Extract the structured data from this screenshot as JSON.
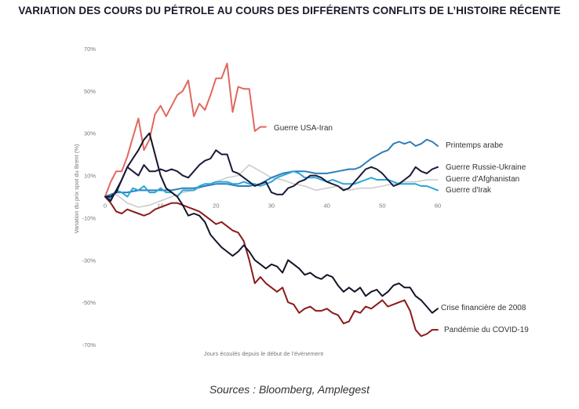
{
  "title": "VARIATION DES COURS DU PÉTROLE AU COURS DES DIFFÉRENTS CONFLITS DE L’HISTOIRE RÉCENTE",
  "source": "Sources : Bloomberg, Amplegest",
  "chart_data": {
    "type": "line",
    "title": "VARIATION DES COURS DU PÉTROLE AU COURS DES DIFFÉRENTS CONFLITS DE L’HISTOIRE RÉCENTE",
    "xlabel": "Jours écoulés depuis le début de l’événement",
    "ylabel": "Variation du prix spot du Brent (%)",
    "xlim": [
      0,
      60
    ],
    "ylim": [
      -70,
      70
    ],
    "x_ticks": [
      0,
      10,
      20,
      30,
      40,
      50,
      60
    ],
    "x_tick_labels": [
      "0",
      "10",
      "20",
      "30",
      "40",
      "50",
      "60"
    ],
    "y_ticks": [
      70,
      50,
      30,
      10,
      -10,
      -30,
      -50,
      -70
    ],
    "y_tick_labels": [
      "70%",
      "50%",
      "30%",
      "10%",
      "-10%",
      "-30%",
      "-50%",
      "-70%"
    ],
    "grid": false,
    "legend": "labels at line ends",
    "series": [
      {
        "name": "Guerre USA-Iran",
        "color": "#e0685e",
        "x": [
          0,
          1,
          2,
          3,
          4,
          5,
          6,
          7,
          8,
          9,
          10,
          11,
          12,
          13,
          14,
          15,
          16,
          17,
          18,
          19,
          20,
          21,
          22,
          23,
          24,
          25,
          26,
          27,
          28,
          29
        ],
        "values": [
          0,
          7,
          12,
          12,
          19,
          28,
          37,
          22,
          27,
          39,
          43,
          38,
          43,
          48,
          50,
          55,
          38,
          44,
          41,
          48,
          56,
          56,
          63,
          40,
          52,
          51,
          51,
          31,
          33,
          33
        ]
      },
      {
        "name": "Printemps arabe",
        "color": "#2e7db8",
        "x": [
          0,
          2,
          4,
          6,
          8,
          10,
          12,
          14,
          16,
          18,
          20,
          22,
          24,
          26,
          28,
          30,
          32,
          34,
          36,
          38,
          40,
          42,
          44,
          45,
          46,
          48,
          50,
          51,
          52,
          53,
          54,
          55,
          56,
          57,
          58,
          59,
          60
        ],
        "values": [
          0,
          2,
          2,
          3,
          3,
          3,
          3,
          4,
          4,
          5,
          6,
          6,
          5,
          5,
          6,
          9,
          11,
          12,
          12,
          11,
          11,
          12,
          13,
          13,
          14,
          18,
          21,
          22,
          25,
          26,
          25,
          26,
          24,
          25,
          27,
          26,
          24
        ]
      },
      {
        "name": "Guerre Russie-Ukraine",
        "color": "#1a1a3a",
        "x": [
          0,
          1,
          2,
          3,
          4,
          5,
          6,
          7,
          8,
          9,
          10,
          11,
          12,
          13,
          14,
          15,
          16,
          17,
          18,
          19,
          20,
          21,
          22,
          23,
          24,
          25,
          26,
          27,
          28,
          29,
          30,
          31,
          32,
          33,
          34,
          35,
          36,
          37,
          38,
          39,
          40,
          41,
          42,
          43,
          44,
          45,
          46,
          47,
          48,
          49,
          50,
          51,
          52,
          53,
          54,
          55,
          56,
          57,
          58,
          59,
          60
        ],
        "values": [
          0,
          -2,
          3,
          8,
          14,
          12,
          10,
          15,
          12,
          12,
          13,
          12,
          13,
          12,
          10,
          9,
          12,
          15,
          17,
          18,
          22,
          20,
          20,
          12,
          11,
          9,
          7,
          5,
          6,
          7,
          2,
          1,
          1,
          4,
          5,
          7,
          8,
          10,
          10,
          9,
          7,
          6,
          5,
          3,
          4,
          7,
          10,
          13,
          14,
          13,
          11,
          8,
          5,
          6,
          8,
          10,
          14,
          12,
          11,
          13,
          14
        ]
      },
      {
        "name": "Guerre d'Afghanistan",
        "color": "#cccccc",
        "x": [
          0,
          2,
          4,
          6,
          8,
          10,
          12,
          14,
          16,
          18,
          20,
          22,
          24,
          26,
          28,
          30,
          32,
          34,
          36,
          38,
          40,
          42,
          44,
          46,
          48,
          50,
          52,
          54,
          56,
          58,
          60
        ],
        "values": [
          0,
          1,
          -3,
          -5,
          -4,
          -2,
          0,
          2,
          3,
          5,
          7,
          9,
          10,
          15,
          12,
          9,
          8,
          6,
          5,
          3,
          4,
          5,
          3,
          4,
          4,
          5,
          6,
          7,
          7,
          8,
          8
        ]
      },
      {
        "name": "Guerre d'Irak",
        "color": "#2aa6dc",
        "x": [
          0,
          1,
          2,
          3,
          4,
          5,
          6,
          7,
          8,
          9,
          10,
          11,
          12,
          13,
          14,
          15,
          16,
          17,
          18,
          19,
          20,
          21,
          22,
          23,
          24,
          25,
          26,
          27,
          28,
          29,
          30,
          31,
          32,
          33,
          34,
          35,
          36,
          37,
          38,
          39,
          40,
          41,
          42,
          43,
          44,
          45,
          46,
          47,
          48,
          49,
          50,
          51,
          52,
          53,
          54,
          55,
          56,
          57,
          58,
          59,
          60
        ],
        "values": [
          0,
          -1,
          3,
          2,
          0,
          4,
          3,
          5,
          2,
          2,
          4,
          2,
          2,
          0,
          3,
          3,
          3,
          5,
          6,
          6,
          7,
          7,
          7,
          6,
          6,
          7,
          6,
          6,
          5,
          6,
          7,
          9,
          10,
          11,
          12,
          11,
          9,
          9,
          9,
          8,
          7,
          8,
          7,
          6,
          6,
          6,
          7,
          8,
          9,
          8,
          8,
          8,
          7,
          6,
          6,
          6,
          6,
          5,
          5,
          4,
          3
        ]
      },
      {
        "name": "Crise financière de 2008",
        "color": "#141428",
        "x": [
          0,
          1,
          2,
          3,
          4,
          5,
          6,
          7,
          8,
          9,
          10,
          11,
          12,
          13,
          14,
          15,
          16,
          17,
          18,
          19,
          20,
          21,
          22,
          23,
          24,
          25,
          26,
          27,
          28,
          29,
          30,
          31,
          32,
          33,
          34,
          35,
          36,
          37,
          38,
          39,
          40,
          41,
          42,
          43,
          44,
          45,
          46,
          47,
          48,
          49,
          50,
          51,
          52,
          53,
          54,
          55,
          56,
          57,
          58,
          59,
          60
        ],
        "values": [
          0,
          0,
          2,
          8,
          14,
          18,
          22,
          27,
          30,
          20,
          10,
          4,
          2,
          0,
          -4,
          -9,
          -8,
          -9,
          -12,
          -18,
          -21,
          -24,
          -26,
          -28,
          -26,
          -23,
          -26,
          -30,
          -32,
          -34,
          -32,
          -33,
          -36,
          -30,
          -32,
          -34,
          -37,
          -36,
          -38,
          -39,
          -37,
          -38,
          -42,
          -45,
          -43,
          -45,
          -43,
          -47,
          -45,
          -44,
          -47,
          -45,
          -42,
          -41,
          -43,
          -43,
          -47,
          -49,
          -52,
          -55,
          -53
        ]
      },
      {
        "name": "Pandémie du COVID-19",
        "color": "#8b1a1a",
        "x": [
          0,
          1,
          2,
          3,
          4,
          5,
          6,
          7,
          8,
          9,
          10,
          11,
          12,
          13,
          14,
          15,
          16,
          17,
          18,
          19,
          20,
          21,
          22,
          23,
          24,
          25,
          26,
          27,
          28,
          29,
          30,
          31,
          32,
          33,
          34,
          35,
          36,
          37,
          38,
          39,
          40,
          41,
          42,
          43,
          44,
          45,
          46,
          47,
          48,
          49,
          50,
          51,
          52,
          53,
          54,
          55,
          56,
          57,
          58,
          59,
          60
        ],
        "values": [
          0,
          -3,
          -7,
          -8,
          -6,
          -7,
          -8,
          -9,
          -8,
          -6,
          -5,
          -4,
          -3,
          -3,
          -4,
          -5,
          -6,
          -7,
          -9,
          -11,
          -13,
          -12,
          -14,
          -16,
          -17,
          -21,
          -30,
          -41,
          -38,
          -41,
          -43,
          -45,
          -43,
          -50,
          -51,
          -55,
          -53,
          -52,
          -54,
          -54,
          -53,
          -55,
          -56,
          -60,
          -59,
          -54,
          -55,
          -52,
          -53,
          -51,
          -49,
          -52,
          -51,
          -50,
          -49,
          -54,
          -63,
          -66,
          -65,
          -63,
          -63
        ]
      }
    ]
  }
}
